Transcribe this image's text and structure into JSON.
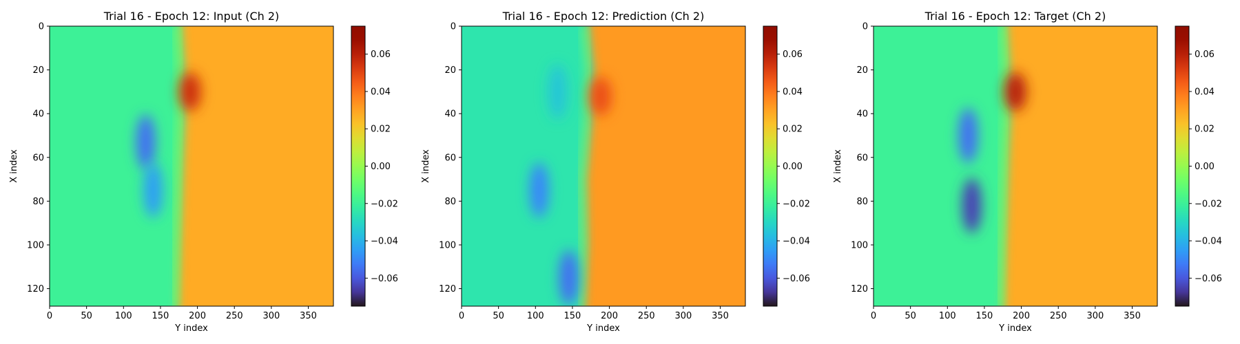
{
  "colorbar": {
    "colormap": "turbo",
    "vmin": -0.075,
    "vmax": 0.075,
    "ticks": [
      -0.06,
      -0.04,
      -0.02,
      0.0,
      0.02,
      0.04,
      0.06
    ],
    "tick_labels": [
      "−0.06",
      "−0.04",
      "−0.02",
      "0.00",
      "0.02",
      "0.04",
      "0.06"
    ]
  },
  "chart_data": [
    {
      "type": "heatmap",
      "title": "Trial 16 - Epoch 12: Input (Ch 2)",
      "xlabel": "Y index",
      "ylabel": "X index",
      "xlim": [
        0,
        384
      ],
      "ylim": [
        128,
        0
      ],
      "xticks": [
        0,
        50,
        100,
        150,
        200,
        250,
        300,
        350
      ],
      "yticks": [
        0,
        20,
        40,
        60,
        80,
        100,
        120
      ],
      "field": {
        "left_value": -0.02,
        "right_value": 0.028,
        "front_y": [
          [
            0,
            178
          ],
          [
            20,
            182
          ],
          [
            30,
            184
          ],
          [
            60,
            180
          ],
          [
            100,
            176
          ],
          [
            128,
            174
          ]
        ],
        "features": [
          {
            "kind": "low",
            "x": 53,
            "y": 130,
            "value": -0.055
          },
          {
            "kind": "low",
            "x": 75,
            "y": 140,
            "value": -0.045
          },
          {
            "kind": "high",
            "x": 30,
            "y": 190,
            "value": 0.055
          }
        ]
      }
    },
    {
      "type": "heatmap",
      "title": "Trial 16 - Epoch 12: Prediction (Ch 2)",
      "xlabel": "Y index",
      "ylabel": "X index",
      "xlim": [
        0,
        384
      ],
      "ylim": [
        128,
        0
      ],
      "xticks": [
        0,
        50,
        100,
        150,
        200,
        250,
        300,
        350
      ],
      "yticks": [
        0,
        20,
        40,
        60,
        80,
        100,
        120
      ],
      "field": {
        "left_value": -0.025,
        "right_value": 0.032,
        "front_y": [
          [
            0,
            172
          ],
          [
            20,
            178
          ],
          [
            40,
            176
          ],
          [
            70,
            168
          ],
          [
            100,
            170
          ],
          [
            128,
            166
          ]
        ],
        "features": [
          {
            "kind": "low",
            "x": 75,
            "y": 105,
            "value": -0.05
          },
          {
            "kind": "low",
            "x": 115,
            "y": 145,
            "value": -0.055
          },
          {
            "kind": "low",
            "x": 30,
            "y": 130,
            "value": -0.035
          },
          {
            "kind": "high",
            "x": 32,
            "y": 188,
            "value": 0.048
          }
        ]
      }
    },
    {
      "type": "heatmap",
      "title": "Trial 16 - Epoch 12: Target (Ch 2)",
      "xlabel": "Y index",
      "ylabel": "X index",
      "xlim": [
        0,
        384
      ],
      "ylim": [
        128,
        0
      ],
      "xticks": [
        0,
        50,
        100,
        150,
        200,
        250,
        300,
        350
      ],
      "yticks": [
        0,
        20,
        40,
        60,
        80,
        100,
        120
      ],
      "field": {
        "left_value": -0.02,
        "right_value": 0.028,
        "front_y": [
          [
            0,
            180
          ],
          [
            20,
            184
          ],
          [
            30,
            186
          ],
          [
            60,
            182
          ],
          [
            100,
            178
          ],
          [
            128,
            176
          ]
        ],
        "features": [
          {
            "kind": "low",
            "x": 50,
            "y": 128,
            "value": -0.055
          },
          {
            "kind": "low",
            "x": 82,
            "y": 133,
            "value": -0.065
          },
          {
            "kind": "high",
            "x": 30,
            "y": 192,
            "value": 0.06
          }
        ]
      }
    }
  ]
}
